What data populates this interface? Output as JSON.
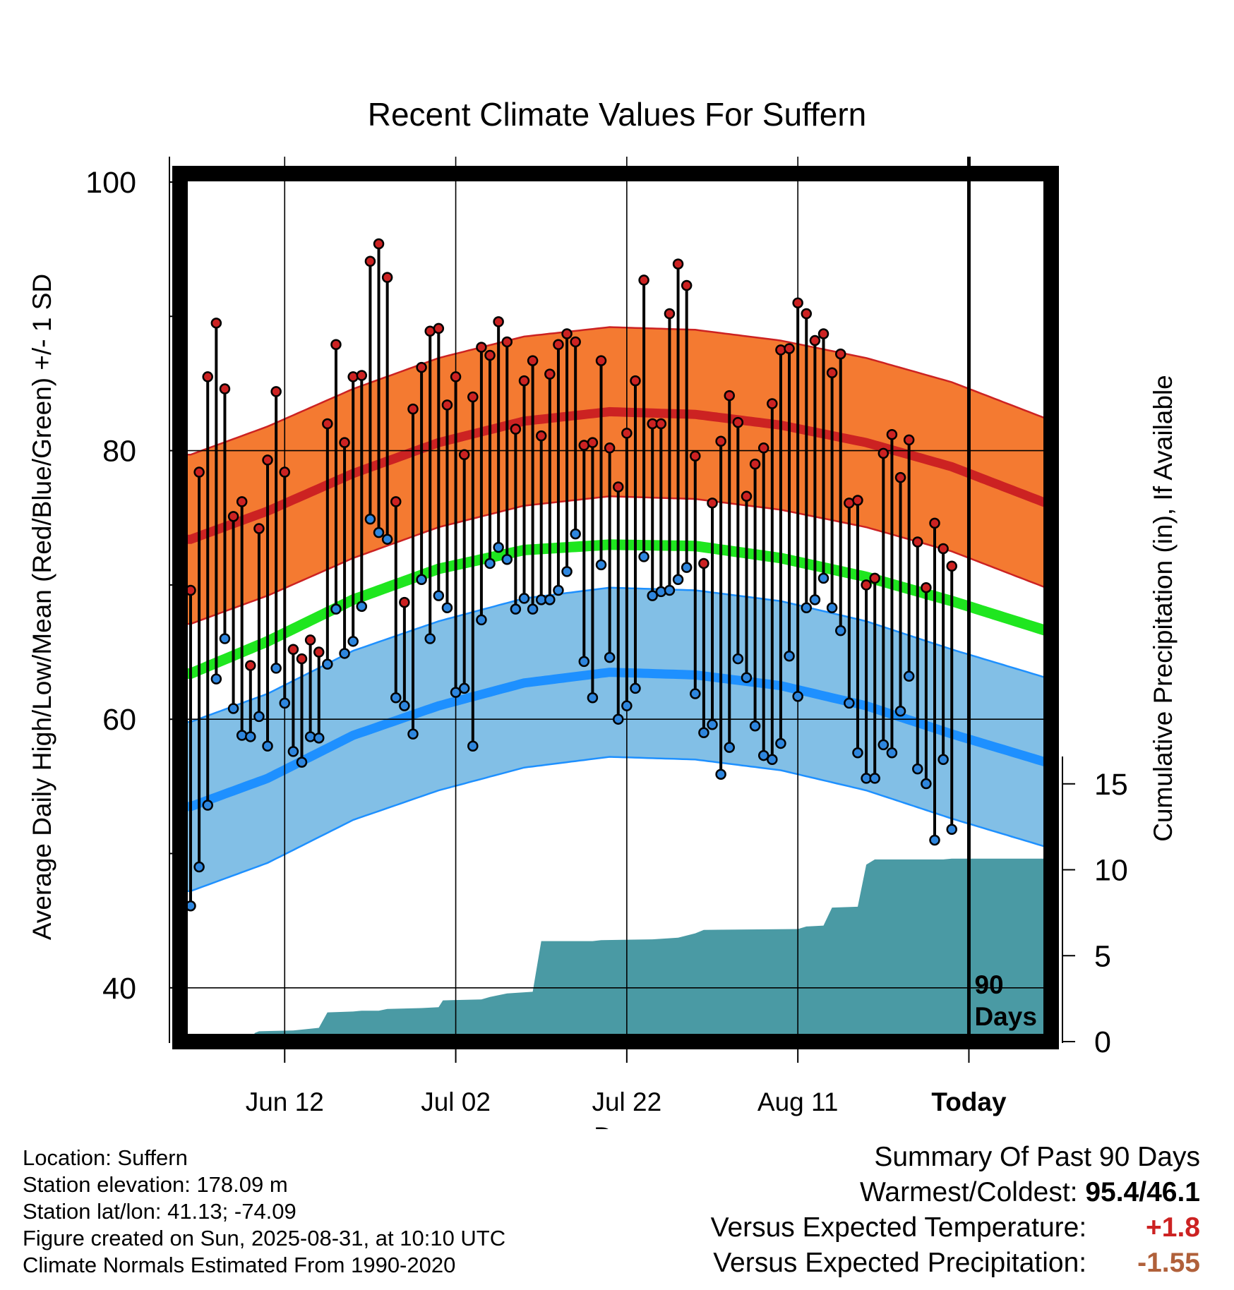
{
  "chart_data": {
    "type": "line",
    "title": "Recent Climate Values For Suffern",
    "xlabel": "Day",
    "ylabel_left": "Average Daily High/Low/Mean (Red/Blue/Green) +/- 1 SD",
    "ylabel_right": "Cumulative Precipitation (in), If Available",
    "x_ticks": [
      {
        "day": 12,
        "label": "Jun 12"
      },
      {
        "day": 32,
        "label": "Jul 02"
      },
      {
        "day": 52,
        "label": "Jul 22"
      },
      {
        "day": 72,
        "label": "Aug 11"
      },
      {
        "day": 92,
        "label": "Today"
      }
    ],
    "xlim": [
      0.5,
      101.5
    ],
    "ylim_left": [
      36.5,
      100
    ],
    "y_ticks_left": [
      40,
      60,
      80,
      100
    ],
    "ylim_right": [
      0,
      15
    ],
    "y_ticks_right": [
      0,
      5,
      10,
      15
    ],
    "today_marker_label": [
      "90",
      "Days"
    ],
    "normals": {
      "high_mean": [
        [
          1,
          73.4
        ],
        [
          10,
          75.5
        ],
        [
          20,
          78.3
        ],
        [
          30,
          80.6
        ],
        [
          40,
          82.2
        ],
        [
          50,
          82.9
        ],
        [
          60,
          82.7
        ],
        [
          70,
          81.9
        ],
        [
          80,
          80.6
        ],
        [
          90,
          78.8
        ],
        [
          101,
          76.1
        ]
      ],
      "high_sd": 6.3,
      "low_mean": [
        [
          1,
          53.5
        ],
        [
          10,
          55.6
        ],
        [
          20,
          58.8
        ],
        [
          30,
          61.0
        ],
        [
          40,
          62.7
        ],
        [
          50,
          63.5
        ],
        [
          60,
          63.3
        ],
        [
          70,
          62.5
        ],
        [
          80,
          61.0
        ],
        [
          90,
          58.9
        ],
        [
          101,
          56.8
        ]
      ],
      "low_sd": 6.3,
      "mean": [
        [
          1,
          63.4
        ],
        [
          10,
          65.8
        ],
        [
          20,
          68.9
        ],
        [
          30,
          71.2
        ],
        [
          40,
          72.6
        ],
        [
          50,
          73.0
        ],
        [
          60,
          72.9
        ],
        [
          70,
          72.0
        ],
        [
          80,
          70.6
        ],
        [
          90,
          68.8
        ],
        [
          101,
          66.6
        ]
      ]
    },
    "daily": [
      {
        "day": 1,
        "high": 69.6,
        "low": 46.1
      },
      {
        "day": 2,
        "high": 78.4,
        "low": 49.0
      },
      {
        "day": 3,
        "high": 85.5,
        "low": 53.6
      },
      {
        "day": 4,
        "high": 89.5,
        "low": 63.0
      },
      {
        "day": 5,
        "high": 84.6,
        "low": 66.0
      },
      {
        "day": 6,
        "high": 75.1,
        "low": 60.8
      },
      {
        "day": 7,
        "high": 76.2,
        "low": 58.8
      },
      {
        "day": 8,
        "high": 64.0,
        "low": 58.7
      },
      {
        "day": 9,
        "high": 74.2,
        "low": 60.2
      },
      {
        "day": 10,
        "high": 79.3,
        "low": 58.0
      },
      {
        "day": 11,
        "high": 84.4,
        "low": 63.8
      },
      {
        "day": 12,
        "high": 78.4,
        "low": 61.2
      },
      {
        "day": 13,
        "high": 65.2,
        "low": 57.6
      },
      {
        "day": 14,
        "high": 64.5,
        "low": 56.8
      },
      {
        "day": 15,
        "high": 65.9,
        "low": 58.7
      },
      {
        "day": 16,
        "high": 65.0,
        "low": 58.6
      },
      {
        "day": 17,
        "high": 82.0,
        "low": 64.1
      },
      {
        "day": 18,
        "high": 87.9,
        "low": 68.2
      },
      {
        "day": 19,
        "high": 80.6,
        "low": 64.9
      },
      {
        "day": 20,
        "high": 85.5,
        "low": 65.8
      },
      {
        "day": 21,
        "high": 85.6,
        "low": 68.4
      },
      {
        "day": 22,
        "high": 94.1,
        "low": 74.9
      },
      {
        "day": 23,
        "high": 95.4,
        "low": 73.9
      },
      {
        "day": 24,
        "high": 92.9,
        "low": 73.4
      },
      {
        "day": 25,
        "high": 76.2,
        "low": 61.6
      },
      {
        "day": 26,
        "high": 68.7,
        "low": 61.0
      },
      {
        "day": 27,
        "high": 83.1,
        "low": 58.9
      },
      {
        "day": 28,
        "high": 86.2,
        "low": 70.4
      },
      {
        "day": 29,
        "high": 88.9,
        "low": 66.0
      },
      {
        "day": 30,
        "high": 89.1,
        "low": 69.2
      },
      {
        "day": 31,
        "high": 83.4,
        "low": 68.3
      },
      {
        "day": 32,
        "high": 85.5,
        "low": 62.0
      },
      {
        "day": 33,
        "high": 79.7,
        "low": 62.3
      },
      {
        "day": 34,
        "high": 84.0,
        "low": 58.0
      },
      {
        "day": 35,
        "high": 87.7,
        "low": 67.4
      },
      {
        "day": 36,
        "high": 87.1,
        "low": 71.6
      },
      {
        "day": 37,
        "high": 89.6,
        "low": 72.8
      },
      {
        "day": 38,
        "high": 88.1,
        "low": 71.9
      },
      {
        "day": 39,
        "high": 81.6,
        "low": 68.2
      },
      {
        "day": 40,
        "high": 85.2,
        "low": 69.0
      },
      {
        "day": 41,
        "high": 86.7,
        "low": 68.2
      },
      {
        "day": 42,
        "high": 81.1,
        "low": 68.9
      },
      {
        "day": 43,
        "high": 85.7,
        "low": 68.9
      },
      {
        "day": 44,
        "high": 87.9,
        "low": 69.6
      },
      {
        "day": 45,
        "high": 88.7,
        "low": 71.0
      },
      {
        "day": 46,
        "high": 88.1,
        "low": 73.8
      },
      {
        "day": 47,
        "high": 80.4,
        "low": 64.3
      },
      {
        "day": 48,
        "high": 80.6,
        "low": 61.6
      },
      {
        "day": 49,
        "high": 86.7,
        "low": 71.5
      },
      {
        "day": 50,
        "high": 80.2,
        "low": 64.6
      },
      {
        "day": 51,
        "high": 77.3,
        "low": 60.0
      },
      {
        "day": 52,
        "high": 81.3,
        "low": 61.0
      },
      {
        "day": 53,
        "high": 85.2,
        "low": 62.3
      },
      {
        "day": 54,
        "high": 92.7,
        "low": 72.1
      },
      {
        "day": 55,
        "high": 82.0,
        "low": 69.2
      },
      {
        "day": 56,
        "high": 82.0,
        "low": 69.5
      },
      {
        "day": 57,
        "high": 90.2,
        "low": 69.6
      },
      {
        "day": 58,
        "high": 93.9,
        "low": 70.4
      },
      {
        "day": 59,
        "high": 92.3,
        "low": 71.3
      },
      {
        "day": 60,
        "high": 79.6,
        "low": 61.9
      },
      {
        "day": 61,
        "high": 71.6,
        "low": 59.0
      },
      {
        "day": 62,
        "high": 76.1,
        "low": 59.6
      },
      {
        "day": 63,
        "high": 80.7,
        "low": 55.9
      },
      {
        "day": 64,
        "high": 84.1,
        "low": 57.9
      },
      {
        "day": 65,
        "high": 82.1,
        "low": 64.5
      },
      {
        "day": 66,
        "high": 76.6,
        "low": 63.1
      },
      {
        "day": 67,
        "high": 79.0,
        "low": 59.5
      },
      {
        "day": 68,
        "high": 80.2,
        "low": 57.3
      },
      {
        "day": 69,
        "high": 83.5,
        "low": 57.0
      },
      {
        "day": 70,
        "high": 87.5,
        "low": 58.2
      },
      {
        "day": 71,
        "high": 87.6,
        "low": 64.7
      },
      {
        "day": 72,
        "high": 91.0,
        "low": 61.7
      },
      {
        "day": 73,
        "high": 90.2,
        "low": 68.3
      },
      {
        "day": 74,
        "high": 88.2,
        "low": 68.9
      },
      {
        "day": 75,
        "high": 88.7,
        "low": 70.5
      },
      {
        "day": 76,
        "high": 85.8,
        "low": 68.3
      },
      {
        "day": 77,
        "high": 87.2,
        "low": 66.6
      },
      {
        "day": 78,
        "high": 76.1,
        "low": 61.2
      },
      {
        "day": 79,
        "high": 76.3,
        "low": 57.5
      },
      {
        "day": 80,
        "high": 70.0,
        "low": 55.6
      },
      {
        "day": 81,
        "high": 70.5,
        "low": 55.6
      },
      {
        "day": 82,
        "high": 79.8,
        "low": 58.1
      },
      {
        "day": 83,
        "high": 81.2,
        "low": 57.5
      },
      {
        "day": 84,
        "high": 78.0,
        "low": 60.6
      },
      {
        "day": 85,
        "high": 80.8,
        "low": 63.2
      },
      {
        "day": 86,
        "high": 73.2,
        "low": 56.3
      },
      {
        "day": 87,
        "high": 69.8,
        "low": 55.2
      },
      {
        "day": 88,
        "high": 74.6,
        "low": 51.0
      },
      {
        "day": 89,
        "high": 72.7,
        "low": 57.0
      },
      {
        "day": 90,
        "high": 71.4,
        "low": 51.8
      }
    ],
    "cumulative_precip": [
      [
        0.5,
        0
      ],
      [
        8,
        0
      ],
      [
        8.5,
        0.5
      ],
      [
        9,
        0.6
      ],
      [
        13,
        0.65
      ],
      [
        14,
        0.7
      ],
      [
        16,
        0.8
      ],
      [
        17,
        1.7
      ],
      [
        20,
        1.75
      ],
      [
        21,
        1.8
      ],
      [
        23,
        1.8
      ],
      [
        24,
        1.9
      ],
      [
        28,
        1.95
      ],
      [
        30,
        2.0
      ],
      [
        30.5,
        2.4
      ],
      [
        35,
        2.45
      ],
      [
        36,
        2.6
      ],
      [
        37,
        2.7
      ],
      [
        38,
        2.8
      ],
      [
        41,
        2.9
      ],
      [
        42,
        5.85
      ],
      [
        48,
        5.85
      ],
      [
        49,
        5.9
      ],
      [
        55,
        5.95
      ],
      [
        58,
        6.05
      ],
      [
        60,
        6.3
      ],
      [
        61,
        6.5
      ],
      [
        72,
        6.55
      ],
      [
        73,
        6.7
      ],
      [
        75,
        6.75
      ],
      [
        76,
        7.8
      ],
      [
        79,
        7.85
      ],
      [
        80,
        10.3
      ],
      [
        81,
        10.6
      ],
      [
        89,
        10.6
      ],
      [
        90,
        10.65
      ],
      [
        100,
        10.65
      ],
      [
        101.5,
        10.65
      ]
    ],
    "colors": {
      "high_band": "#f47a31",
      "high_line": "#cc2222",
      "low_band": "#82bfe6",
      "low_line": "#1e90ff",
      "mean_line": "#1fe61f",
      "precip_fill": "#4a9aa4",
      "high_dot": "#cc2222",
      "low_dot": "#2e86de"
    },
    "grid": true
  },
  "info": {
    "location": "Location: Suffern",
    "elevation": "Station elevation: 178.09 m",
    "latlon": "Station lat/lon: 41.13; -74.09",
    "created": "Figure created on Sun, 2025-08-31, at 10:10 UTC",
    "normals_note": "Climate Normals Estimated From 1990-2020"
  },
  "summary": {
    "heading": "Summary Of Past 90 Days",
    "warm_cold_label": "Warmest/Coldest:",
    "warm_cold_value": "95.4/46.1",
    "temp_label": "Versus Expected Temperature:",
    "temp_value": "+1.8",
    "temp_color": "#cc2222",
    "precip_label": "Versus Expected Precipitation:",
    "precip_value": "-1.55",
    "precip_color": "#b0603a"
  }
}
